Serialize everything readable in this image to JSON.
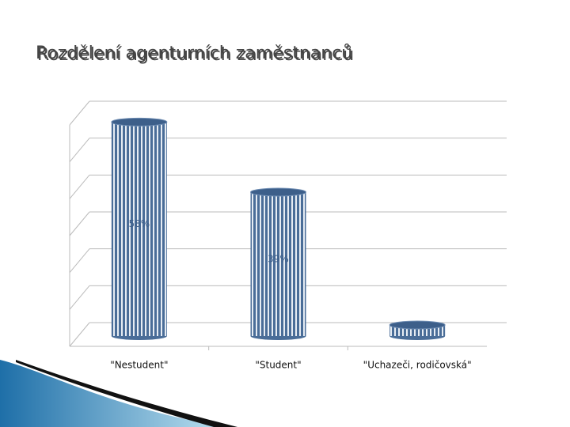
{
  "chart_data": {
    "type": "bar",
    "title": "Rozdělení agenturních zaměstnanců",
    "categories": [
      "\"Nestudent\"",
      "\"Student\"",
      "\"Uchazeči, rodičovská\""
    ],
    "values": [
      58,
      39,
      3
    ],
    "value_labels": [
      "58%",
      "39%",
      null
    ],
    "color": "#4a6d98",
    "ylim": [
      0,
      60
    ],
    "yticks": [
      0,
      10,
      20,
      30,
      40,
      50,
      60
    ],
    "grid": true
  }
}
